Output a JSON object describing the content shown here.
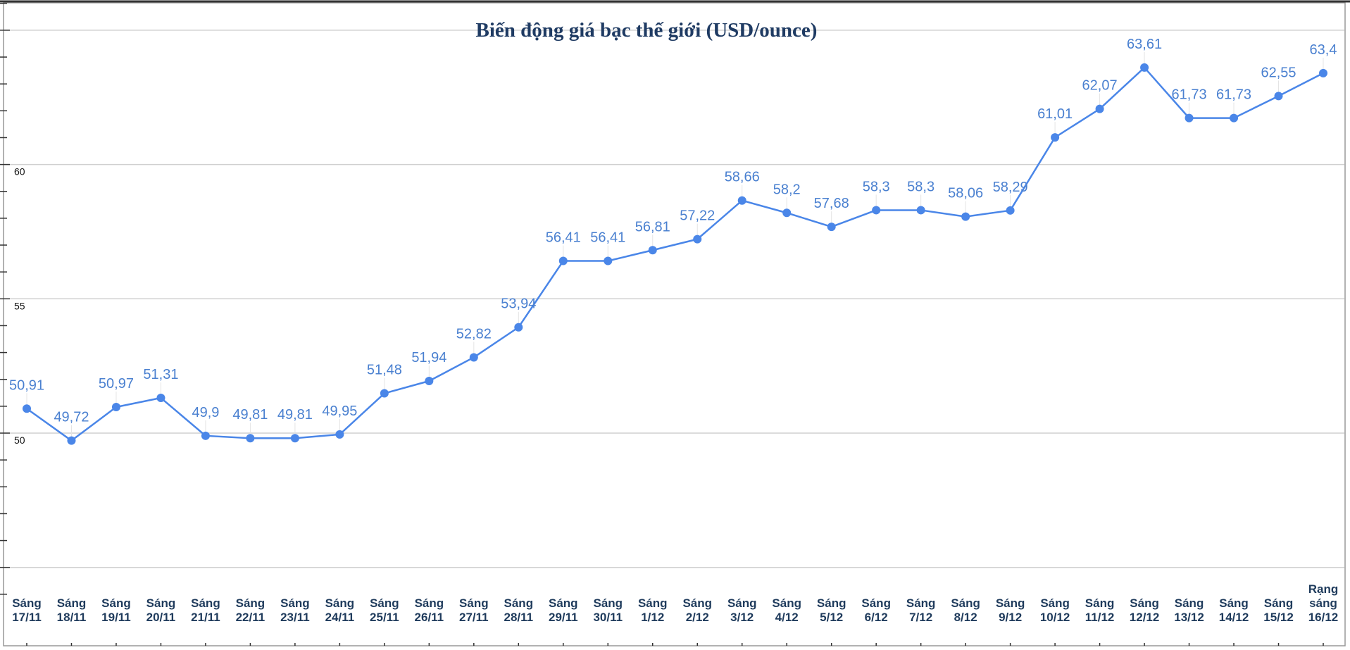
{
  "chart_data": {
    "type": "line",
    "title": "Biến động giá bạc thế giới (USD/ounce)",
    "xlabel": "",
    "ylabel": "",
    "ylim": [
      45,
      65
    ],
    "y_ticks": [
      45,
      50,
      55,
      60,
      65
    ],
    "y_tick_labels": {
      "50": "50",
      "55": "55",
      "60": "60"
    },
    "grid": true,
    "line_color": "#4a86e8",
    "label_color": "#4a80d0",
    "category_color": "#1f3b5c",
    "categories": [
      [
        "Sáng",
        "17/11"
      ],
      [
        "Sáng",
        "18/11"
      ],
      [
        "Sáng",
        "19/11"
      ],
      [
        "Sáng",
        "20/11"
      ],
      [
        "Sáng",
        "21/11"
      ],
      [
        "Sáng",
        "22/11"
      ],
      [
        "Sáng",
        "23/11"
      ],
      [
        "Sáng",
        "24/11"
      ],
      [
        "Sáng",
        "25/11"
      ],
      [
        "Sáng",
        "26/11"
      ],
      [
        "Sáng",
        "27/11"
      ],
      [
        "Sáng",
        "28/11"
      ],
      [
        "Sáng",
        "29/11"
      ],
      [
        "Sáng",
        "30/11"
      ],
      [
        "Sáng",
        "1/12"
      ],
      [
        "Sáng",
        "2/12"
      ],
      [
        "Sáng",
        "3/12"
      ],
      [
        "Sáng",
        "4/12"
      ],
      [
        "Sáng",
        "5/12"
      ],
      [
        "Sáng",
        "6/12"
      ],
      [
        "Sáng",
        "7/12"
      ],
      [
        "Sáng",
        "8/12"
      ],
      [
        "Sáng",
        "9/12"
      ],
      [
        "Sáng",
        "10/12"
      ],
      [
        "Sáng",
        "11/12"
      ],
      [
        "Sáng",
        "12/12"
      ],
      [
        "Sáng",
        "13/12"
      ],
      [
        "Sáng",
        "14/12"
      ],
      [
        "Sáng",
        "15/12"
      ],
      [
        "Rạng",
        "sáng",
        "16/12"
      ]
    ],
    "values": [
      50.91,
      49.72,
      50.97,
      51.31,
      49.9,
      49.81,
      49.81,
      49.95,
      51.48,
      51.94,
      52.82,
      53.94,
      56.41,
      56.41,
      56.81,
      57.22,
      58.66,
      58.2,
      57.68,
      58.3,
      58.3,
      58.06,
      58.29,
      61.01,
      62.07,
      63.61,
      61.73,
      61.73,
      62.55,
      63.4
    ],
    "data_labels": [
      "50,91",
      "49,72",
      "50,97",
      "51,31",
      "49,9",
      "49,81",
      "49,81",
      "49,95",
      "51,48",
      "51,94",
      "52,82",
      "53,94",
      "56,41",
      "56,41",
      "56,81",
      "57,22",
      "58,66",
      "58,2",
      "57,68",
      "58,3",
      "58,3",
      "58,06",
      "58,29",
      "61,01",
      "62,07",
      "63,61",
      "61,73",
      "61,73",
      "62,55",
      "63,4"
    ]
  }
}
